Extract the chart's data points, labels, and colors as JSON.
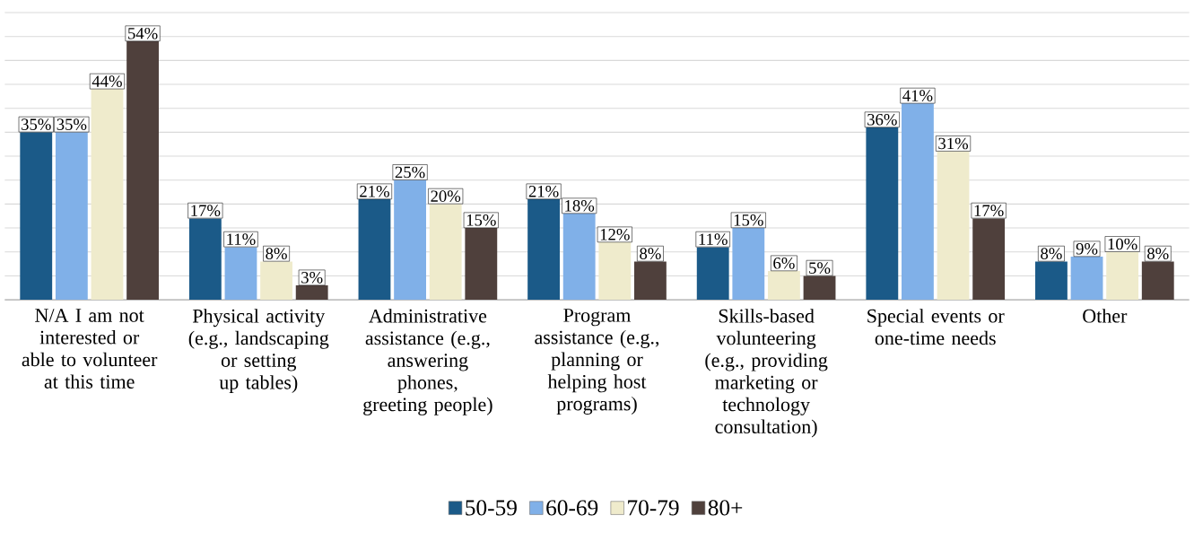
{
  "chart_data": {
    "type": "bar",
    "categories": [
      "N/A I am not interested or able to volunteer at this time",
      "Physical activity (e.g., landscaping or setting up tables)",
      "Administrative assistance (e.g., answering phones, greeting people)",
      "Program assistance (e.g., planning or helping host programs)",
      "Skills-based volunteering (e.g., providing marketing or technology consultation)",
      "Special events or one-time needs",
      "Other"
    ],
    "series": [
      {
        "name": "50-59",
        "color": "#1b5a88",
        "values": [
          35,
          17,
          21,
          21,
          11,
          36,
          8
        ],
        "value_labels": [
          "35%",
          "17%",
          "21%",
          "21%",
          "11%",
          "36%",
          "8%"
        ]
      },
      {
        "name": "60-69",
        "color": "#80b0e8",
        "values": [
          35,
          11,
          25,
          18,
          15,
          41,
          9
        ],
        "value_labels": [
          "35%",
          "11%",
          "25%",
          "18%",
          "15%",
          "41%",
          "9%"
        ]
      },
      {
        "name": "70-79",
        "color": "#efebcc",
        "values": [
          44,
          8,
          20,
          12,
          6,
          31,
          10
        ],
        "value_labels": [
          "44%",
          "8%",
          "20%",
          "12%",
          "6%",
          "31%",
          "10%"
        ]
      },
      {
        "name": "80+",
        "color": "#4f403c",
        "values": [
          54,
          3,
          15,
          8,
          5,
          17,
          8
        ],
        "value_labels": [
          "54%",
          "3%",
          "15%",
          "8%",
          "5%",
          "17%",
          "8%"
        ]
      }
    ],
    "ylim": [
      0,
      60
    ],
    "yticks": [
      {
        "value": 0,
        "label": null
      },
      {
        "value": 5,
        "label": null
      },
      {
        "value": 10,
        "label": null
      },
      {
        "value": 15,
        "label": null
      },
      {
        "value": 20,
        "label": null
      },
      {
        "value": 25,
        "label": null
      },
      {
        "value": 30,
        "label": null
      },
      {
        "value": 35,
        "label": null
      },
      {
        "value": 40,
        "label": null
      },
      {
        "value": 45,
        "label": null
      },
      {
        "value": 50,
        "label": null
      },
      {
        "value": 55,
        "label": null
      },
      {
        "value": 60,
        "label": null
      }
    ],
    "grid": "y",
    "tick_labels": "x",
    "legend": "bottom"
  }
}
